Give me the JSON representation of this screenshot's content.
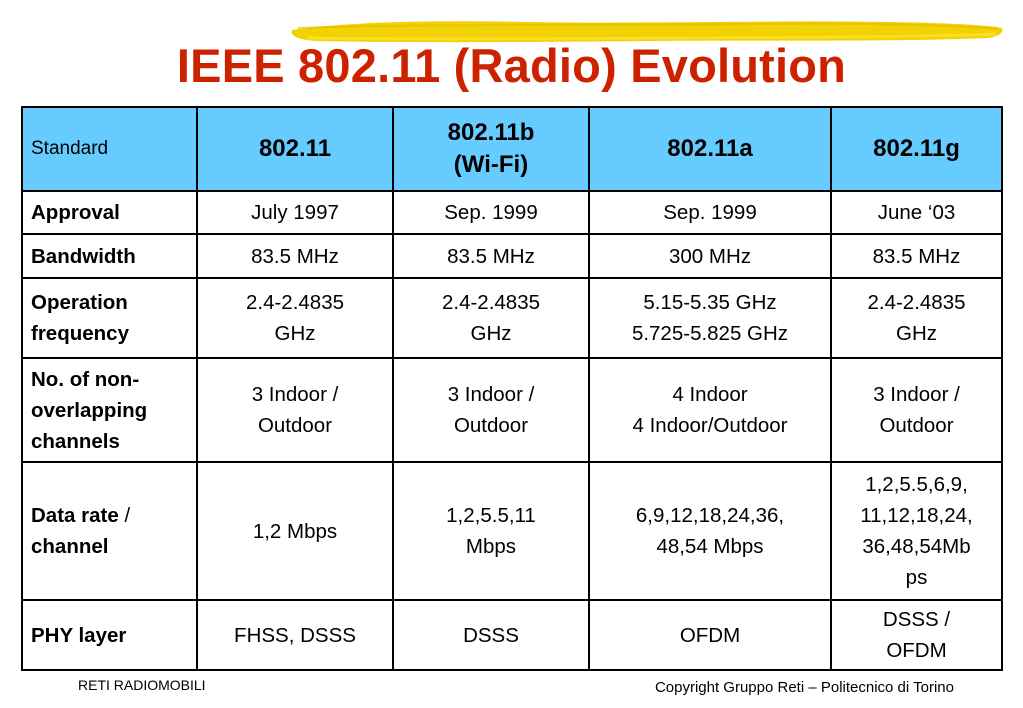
{
  "title": "IEEE 802.11 (Radio) Evolution",
  "colors": {
    "title": "#cc2200",
    "header_bg": "#66ccff",
    "highlight": "#f2d200"
  },
  "table": {
    "header": [
      "Standard",
      "802.11",
      "802.11b\n(Wi-Fi)",
      "802.11a",
      "802.11g"
    ],
    "rows": [
      {
        "label": "Approval",
        "cells": [
          "July 1997",
          "Sep. 1999",
          "Sep. 1999",
          "June ‘03"
        ]
      },
      {
        "label": "Bandwidth",
        "cells": [
          "83.5 MHz",
          "83.5 MHz",
          "300 MHz",
          "83.5 MHz"
        ]
      },
      {
        "label": "Operation\nfrequency",
        "cells": [
          "2.4-2.4835\nGHz",
          "2.4-2.4835\nGHz",
          "5.15-5.35 GHz\n5.725-5.825 GHz",
          "2.4-2.4835\nGHz"
        ]
      },
      {
        "label": "No. of non-\noverlapping\nchannels",
        "cells": [
          "3 Indoor /\nOutdoor",
          "3 Indoor /\nOutdoor",
          "4 Indoor\n4 Indoor/Outdoor",
          "3 Indoor /\nOutdoor"
        ]
      },
      {
        "label": "Data rate",
        "label_suffix": " /",
        "label_line2": "channel",
        "cells": [
          "1,2 Mbps",
          "1,2,5.5,11\nMbps",
          "6,9,12,18,24,36,\n48,54 Mbps",
          "1,2,5.5,6,9,\n11,12,18,24,\n36,48,54Mb\nps"
        ]
      },
      {
        "label": "PHY layer",
        "cells": [
          "FHSS, DSSS",
          "DSSS",
          "OFDM",
          "DSSS /\nOFDM"
        ]
      }
    ]
  },
  "footer": {
    "left": "RETI RADIOMOBILI",
    "right": "Copyright Gruppo Reti – Politecnico di Torino"
  }
}
